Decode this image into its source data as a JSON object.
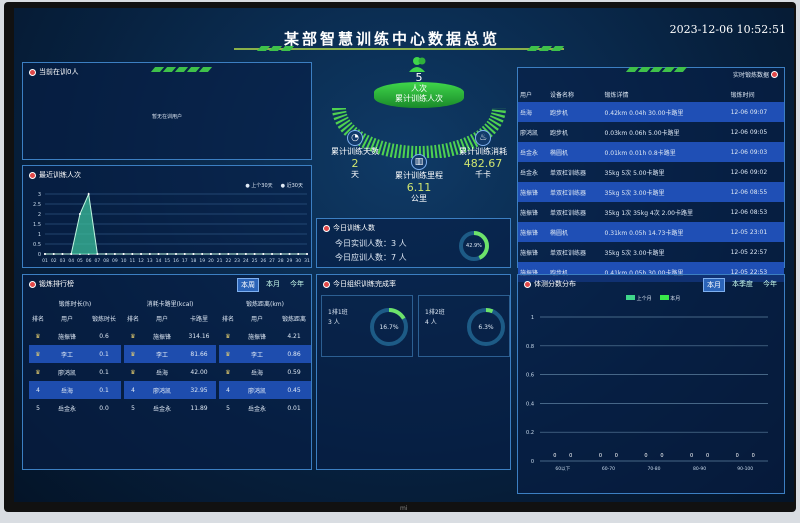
{
  "header": {
    "title": "某部智慧训练中心数据总览",
    "datetime": "2023-12-06 10:52:51"
  },
  "brand": "mi",
  "current": {
    "title": "当前在训0人",
    "empty": "暂无在训用户"
  },
  "recent": {
    "title": "最近训练人次",
    "legend": [
      "上个30天",
      "近30天"
    ]
  },
  "chart_data": {
    "type": "area",
    "title": "最近训练人次",
    "x": [
      "01",
      "02",
      "03",
      "04",
      "05",
      "06",
      "07",
      "08",
      "09",
      "10",
      "11",
      "12",
      "13",
      "14",
      "15",
      "16",
      "17",
      "18",
      "19",
      "20",
      "21",
      "22",
      "23",
      "24",
      "25",
      "26",
      "27",
      "28",
      "29",
      "30",
      "31"
    ],
    "ylim": [
      0,
      3
    ],
    "yticks": [
      "0",
      "0.5",
      "1",
      "1.5",
      "2",
      "2.5",
      "3"
    ],
    "series": [
      {
        "name": "上个30天",
        "values": [
          0,
          0,
          0,
          0,
          0,
          0,
          0,
          0,
          0,
          0,
          0,
          0,
          0,
          0,
          0,
          0,
          0,
          0,
          0,
          0,
          0,
          0,
          0,
          0,
          0,
          0,
          0,
          0,
          0,
          0,
          0
        ]
      },
      {
        "name": "近30天",
        "values": [
          0,
          0,
          0,
          0,
          2,
          3,
          0,
          0,
          0,
          0,
          0,
          0,
          0,
          0,
          0,
          0,
          0,
          0,
          0,
          0,
          0,
          0,
          0,
          0,
          0,
          0,
          0,
          0,
          0,
          0,
          0
        ]
      }
    ],
    "legend": "top-right",
    "grid": true
  },
  "summary": {
    "count": "5",
    "count_unit": "人次",
    "count_label": "累计训练人次",
    "days_label": "累计训练天数",
    "days": "2",
    "days_unit": "天",
    "distance_label": "累计训练里程",
    "distance": "6.11",
    "distance_unit": "公里",
    "energy_label": "累计训练消耗",
    "energy": "482.67",
    "energy_unit": "千卡"
  },
  "today": {
    "title": "今日训练人数",
    "actual": "今日实训人数：3 人",
    "expected": "今日应训人数：7 人",
    "rate": "42.9%",
    "rate_value": 42.9
  },
  "ranking": {
    "title": "锻炼排行榜",
    "tabs": [
      "本周",
      "本月",
      "今年"
    ],
    "active_tab": 0,
    "tables": [
      {
        "caption": "锻炼时长(h)",
        "headers": [
          "排名",
          "用户",
          "锻炼时长"
        ],
        "rows": [
          [
            "",
            "施振锋",
            "0.6"
          ],
          [
            "",
            "李工",
            "0.1"
          ],
          [
            "",
            "廖鸿凯",
            "0.1"
          ],
          [
            "4",
            "岳海",
            "0.1"
          ],
          [
            "5",
            "岳金永",
            "0.0"
          ]
        ]
      },
      {
        "caption": "消耗卡路里(kcal)",
        "headers": [
          "排名",
          "用户",
          "卡路里"
        ],
        "rows": [
          [
            "",
            "施振锋",
            "314.16"
          ],
          [
            "",
            "李工",
            "81.66"
          ],
          [
            "",
            "岳海",
            "42.00"
          ],
          [
            "4",
            "廖鸿凯",
            "32.95"
          ],
          [
            "5",
            "岳金永",
            "11.89"
          ]
        ]
      },
      {
        "caption": "锻炼距离(km)",
        "headers": [
          "排名",
          "用户",
          "锻炼距离"
        ],
        "rows": [
          [
            "",
            "施振锋",
            "4.21"
          ],
          [
            "",
            "李工",
            "0.86"
          ],
          [
            "",
            "岳海",
            "0.59"
          ],
          [
            "4",
            "廖鸿凯",
            "0.45"
          ],
          [
            "5",
            "岳金永",
            "0.01"
          ]
        ]
      }
    ]
  },
  "completion": {
    "title": "今日组织训练完成率",
    "items": [
      {
        "name": "1排1班",
        "people": "3 人",
        "rate": "16.7%",
        "value": 16.7
      },
      {
        "name": "1排2班",
        "people": "4 人",
        "rate": "6.3%",
        "value": 6.3
      }
    ]
  },
  "realtime": {
    "title": "实时锻炼数据",
    "headers": [
      "用户",
      "设备名称",
      "锻炼详情",
      "锻炼时间"
    ],
    "rows": [
      [
        "岳海",
        "跑步机",
        "0.42km 0.04h 30.00卡路里",
        "12-06 09:07"
      ],
      [
        "廖鸿凯",
        "跑步机",
        "0.03km 0.06h 5.00卡路里",
        "12-06 09:05"
      ],
      [
        "岳金永",
        "椭圆机",
        "0.01km 0.01h 0.8卡路里",
        "12-06 09:03"
      ],
      [
        "岳金永",
        "单双杠训练器",
        "35kg 5次 5.00卡路里",
        "12-06 09:02"
      ],
      [
        "施振锋",
        "单双杠训练器",
        "35kg 5次 3.00卡路里",
        "12-06 08:55"
      ],
      [
        "施振锋",
        "单双杠训练器",
        "35kg 1次 35kg 4次 2.00卡路里",
        "12-06 08:53"
      ],
      [
        "施振锋",
        "椭圆机",
        "0.31km 0.05h 14.73卡路里",
        "12-05 23:01"
      ],
      [
        "施振锋",
        "单双杠训练器",
        "35kg 5次 3.00卡路里",
        "12-05 22:57"
      ],
      [
        "施振锋",
        "跑步机",
        "0.41km 0.05h 30.00卡路里",
        "12-05 22:53"
      ]
    ]
  },
  "distribution": {
    "title": "体测分数分布",
    "tabs": [
      "本月",
      "本季度",
      "今年"
    ],
    "active_tab": 0,
    "legend": [
      "上个月",
      "本月"
    ],
    "chart_data": {
      "type": "bar",
      "categories": [
        "60以下",
        "60-70",
        "70-80",
        "80-90",
        "90-100"
      ],
      "ylim": [
        0,
        1
      ],
      "yticks": [
        "0",
        "0.2",
        "0.4",
        "0.6",
        "0.8",
        "1"
      ],
      "series": [
        {
          "name": "上个月",
          "values": [
            0,
            0,
            0,
            0,
            0
          ]
        },
        {
          "name": "本月",
          "values": [
            0,
            0,
            0,
            0,
            0
          ]
        }
      ]
    }
  }
}
